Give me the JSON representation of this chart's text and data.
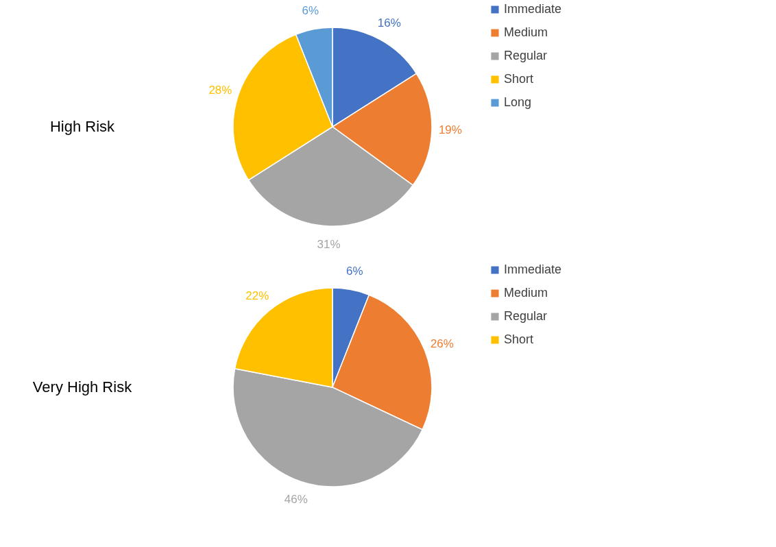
{
  "chart_data": [
    {
      "type": "pie",
      "title": "High Risk",
      "categories": [
        "Immediate",
        "Medium",
        "Regular",
        "Short",
        "Long"
      ],
      "values": [
        16,
        19,
        31,
        28,
        6
      ],
      "value_labels": [
        "16%",
        "19%",
        "31%",
        "28%",
        "6%"
      ],
      "colors": [
        "#4472c4",
        "#ed7d31",
        "#a5a5a5",
        "#ffc000",
        "#5b9bd5"
      ],
      "legend": "right"
    },
    {
      "type": "pie",
      "title": "Very High Risk",
      "categories": [
        "Immediate",
        "Medium",
        "Regular",
        "Short"
      ],
      "values": [
        6,
        26,
        46,
        22
      ],
      "value_labels": [
        "6%",
        "26%",
        "46%",
        "22%"
      ],
      "colors": [
        "#4472c4",
        "#ed7d31",
        "#a5a5a5",
        "#ffc000"
      ],
      "legend": "right"
    }
  ]
}
